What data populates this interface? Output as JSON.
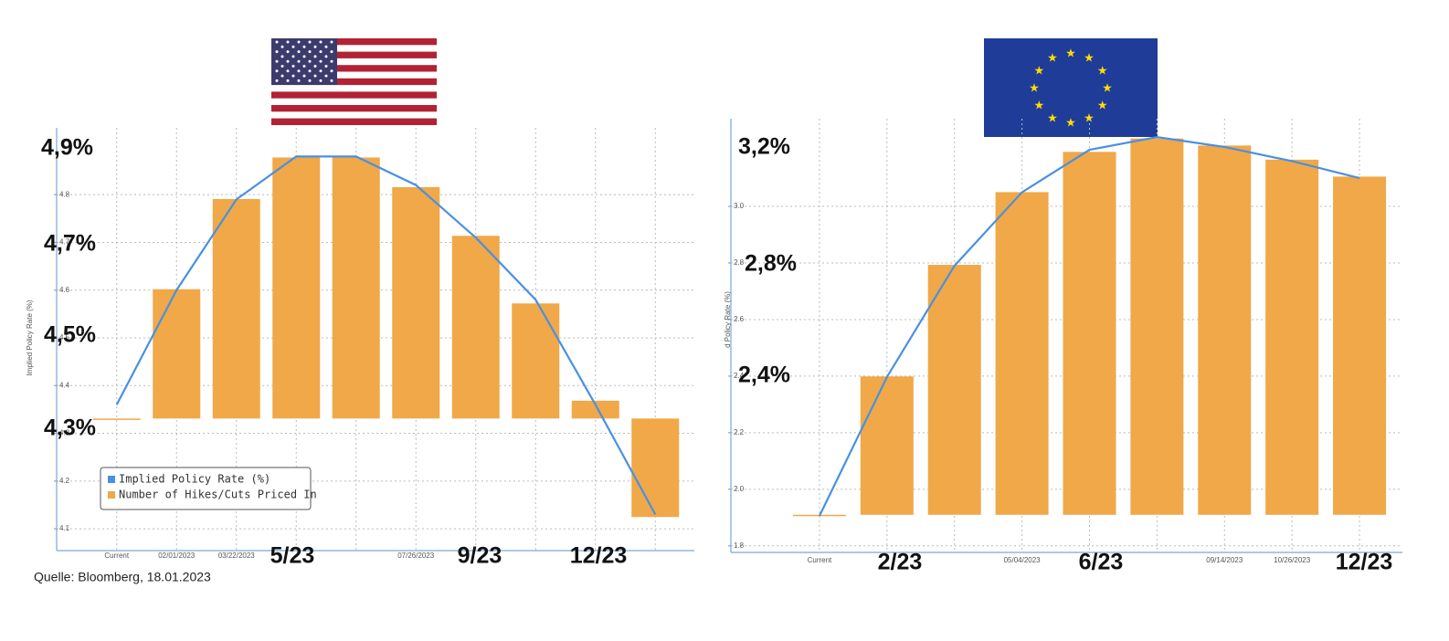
{
  "source": "Quelle: Bloomberg, 18.01.2023",
  "chart_data": [
    {
      "type": "combo",
      "ylabel": "Implied Policy Rate (%)",
      "categories": [
        "Current",
        "02/01/2023",
        "03/22/2023",
        null,
        null,
        "07/26/2023",
        null,
        null,
        null,
        null
      ],
      "series": [
        {
          "name": "Implied Policy Rate (%)",
          "color": "#4a90e2",
          "values": [
            4.36,
            4.6,
            4.79,
            4.88,
            4.88,
            4.82,
            4.71,
            4.58,
            4.36,
            4.13
          ]
        },
        {
          "name": "Number of Hikes/Cuts Priced In",
          "color": "#f0a848",
          "axis": "y2",
          "values": [
            0,
            1.09,
            1.85,
            2.2,
            2.2,
            1.95,
            1.54,
            0.97,
            0.15,
            -0.83
          ]
        }
      ],
      "ylim": [
        4.06,
        4.94
      ],
      "yticks": [
        4.1,
        4.2,
        4.3,
        4.4,
        4.5,
        4.6,
        4.7,
        4.8
      ],
      "y2lim": [
        -1.09,
        2.45
      ],
      "grid": true,
      "legend": "lower left",
      "annotations": [
        "4,9%",
        "4,7%",
        "4,5%",
        "4,3%",
        "5/23",
        "9/23",
        "12/23"
      ]
    },
    {
      "type": "combo",
      "ylabel": "d Policy Rate (%)",
      "categories": [
        "Current",
        null,
        null,
        "05/04/2023",
        null,
        null,
        "09/14/2023",
        "10/26/2023",
        null
      ],
      "series": [
        {
          "color": "#4a90e2",
          "values": [
            1.906,
            2.397,
            2.79,
            3.05,
            3.2,
            3.245,
            3.21,
            3.16,
            3.1
          ]
        },
        {
          "color": "#f0a848",
          "axis": "y2",
          "values": [
            0,
            1.96,
            3.54,
            4.57,
            5.14,
            5.33,
            5.23,
            5.03,
            4.79
          ]
        }
      ],
      "ylim": [
        1.78,
        3.31
      ],
      "yticks": [
        1.8,
        {
          "value": 2,
          "label": "2.0"
        },
        2.2,
        2.4,
        2.6,
        2.8,
        {
          "value": 3,
          "label": "3.0"
        }
      ],
      "y2lim": [
        -0.52,
        5.61
      ],
      "grid": true,
      "annotations": [
        "3,2%",
        "2,8%",
        "2,4%",
        "2/23",
        "6/23",
        "12/23"
      ]
    }
  ]
}
